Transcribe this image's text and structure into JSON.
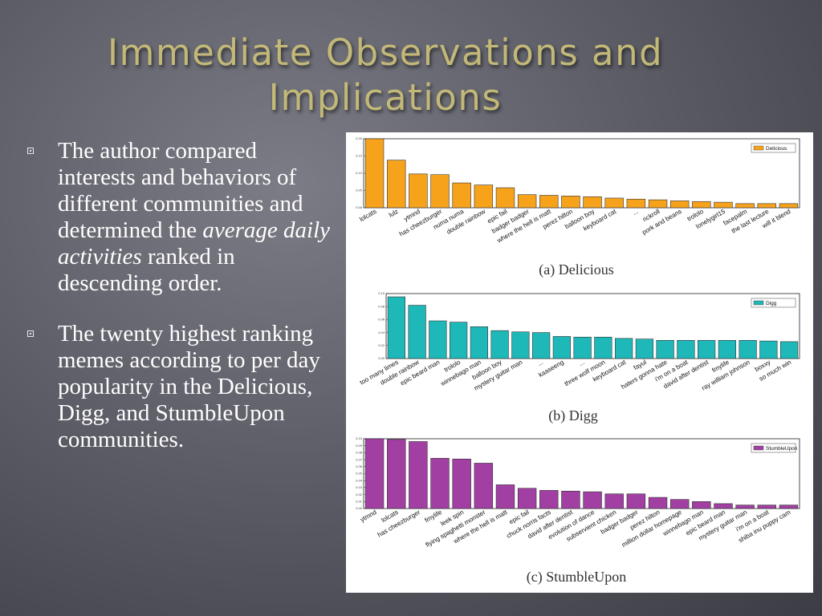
{
  "slide": {
    "title": "Immediate Observations and Implications",
    "bullets": [
      {
        "pre": "The author compared interests and behaviors of different communities and determined the ",
        "em": "average daily activities",
        "post": " ranked in descending order."
      },
      {
        "pre": "The twenty highest ranking memes according to per day popularity in the Delicious, Digg, and StumbleUpon communities.",
        "em": "",
        "post": ""
      }
    ]
  },
  "chart_data": [
    {
      "type": "bar",
      "caption": "(a) Delicious",
      "color": "#f7a21b",
      "series": [
        {
          "name": "Delicious",
          "values": [
            0.2,
            0.138,
            0.098,
            0.096,
            0.072,
            0.066,
            0.058,
            0.038,
            0.036,
            0.034,
            0.032,
            0.028,
            0.025,
            0.023,
            0.02,
            0.018,
            0.016,
            0.012,
            0.012,
            0.012
          ]
        }
      ],
      "categories": [
        "lolcats",
        "lulz",
        "ytmnd",
        "has cheezburger",
        "numa numa",
        "double rainbow",
        "epic fail",
        "badger badger",
        "where the hell is matt",
        "perez hilton",
        "balloon boy",
        "keyboard cat",
        "...",
        "rickroll",
        "pork and beans",
        "trololo",
        "lonelygirl15",
        "facepalm",
        "the last lecture",
        "will it blend"
      ],
      "ylim": [
        0,
        0.2
      ],
      "yticks": [
        "0.00",
        "0.05",
        "0.10",
        "0.15",
        "0.20"
      ],
      "legend": "top-right"
    },
    {
      "type": "bar",
      "caption": "(b) Digg",
      "color": "#1fb8b8",
      "series": [
        {
          "name": "Digg",
          "values": [
            0.095,
            0.082,
            0.058,
            0.056,
            0.049,
            0.043,
            0.041,
            0.04,
            0.034,
            0.033,
            0.033,
            0.031,
            0.03,
            0.028,
            0.028,
            0.028,
            0.028,
            0.028,
            0.027,
            0.026
          ]
        }
      ],
      "categories": [
        "too many limes",
        "double rainbow",
        "epic beard man",
        "trololo",
        "winnebago man",
        "balloon boy",
        "mystery guitar man",
        "...",
        "kaaseeng",
        "...",
        "three wolf moon",
        "keyboard cat",
        "fayul",
        "haters gonna hate",
        "i'm on a boat",
        "david after dentist",
        "fmylife",
        "ray william johnson",
        "boxxy",
        "so much win"
      ],
      "ylim": [
        0,
        0.1
      ],
      "yticks": [
        "0.00",
        "0.02",
        "0.04",
        "0.06",
        "0.08",
        "0.10"
      ],
      "legend": "top-right"
    },
    {
      "type": "bar",
      "caption": "(c) StumbleUpon",
      "color": "#a23fa2",
      "series": [
        {
          "name": "StumbleUpon",
          "values": [
            0.1,
            0.099,
            0.096,
            0.072,
            0.071,
            0.065,
            0.034,
            0.029,
            0.026,
            0.025,
            0.024,
            0.021,
            0.021,
            0.016,
            0.013,
            0.01,
            0.007,
            0.005,
            0.005,
            0.005
          ]
        }
      ],
      "categories": [
        "ytmnd",
        "lolcats",
        "has cheezburger",
        "fmylife",
        "leek spin",
        "flying spaghetti monster",
        "where the hell is matt",
        "epic fail",
        "chuck norris facts",
        "david after dentist",
        "evolution of dance",
        "subservient chicken",
        "badger badger",
        "perez hilton",
        "million dollar homepage",
        "winnebago man",
        "epic beard man",
        "mystery guitar man",
        "i'm on a boat",
        "shiba inu puppy cam"
      ],
      "ylim": [
        0,
        0.1
      ],
      "yticks": [
        "0.00",
        "0.01",
        "0.02",
        "0.03",
        "0.04",
        "0.05",
        "0.06",
        "0.07",
        "0.08",
        "0.09",
        "0.10"
      ],
      "legend": "top-right"
    }
  ]
}
